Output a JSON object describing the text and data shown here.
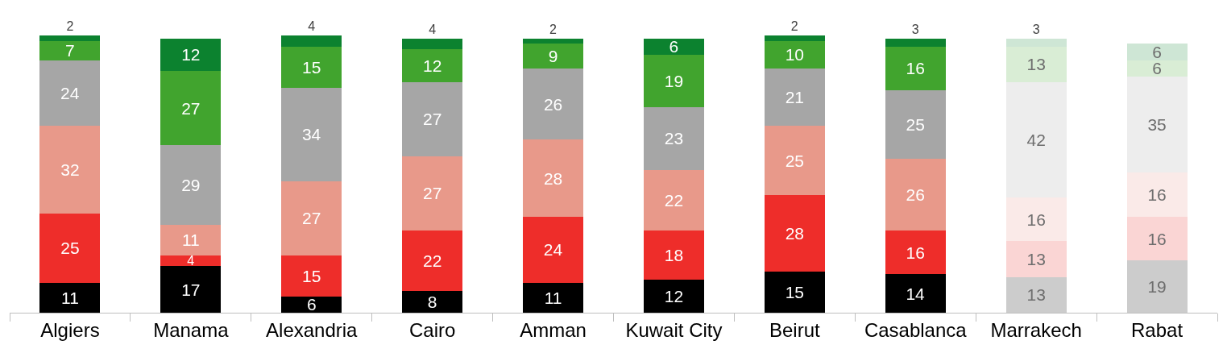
{
  "chart_data": {
    "type": "bar",
    "stacked": true,
    "data_labels": true,
    "categories": [
      "Algiers",
      "Manama",
      "Alexandria",
      "Cairo",
      "Amman",
      "Kuwait City",
      "Beirut",
      "Casablanca",
      "Marrakech",
      "Rabat"
    ],
    "series": [
      {
        "colors": [
          "#000000",
          "#000000",
          "#000000",
          "#000000",
          "#000000",
          "#000000",
          "#000000",
          "#000000",
          "#cccccc",
          "#cccccc"
        ],
        "values": [
          11,
          17,
          6,
          8,
          11,
          12,
          15,
          14,
          13,
          19
        ]
      },
      {
        "colors": [
          "#ee2d2a",
          "#ee2d2a",
          "#ee2d2a",
          "#ee2d2a",
          "#ee2d2a",
          "#ee2d2a",
          "#ee2d2a",
          "#ee2d2a",
          "#fad5d4",
          "#fad5d4"
        ],
        "values": [
          25,
          4,
          15,
          22,
          24,
          18,
          28,
          16,
          13,
          16
        ]
      },
      {
        "colors": [
          "#e8998a",
          "#e8998a",
          "#e8998a",
          "#e8998a",
          "#e8998a",
          "#e8998a",
          "#e8998a",
          "#e8998a",
          "#faeae8",
          "#faeae8"
        ],
        "values": [
          32,
          11,
          27,
          27,
          28,
          22,
          25,
          26,
          16,
          16
        ]
      },
      {
        "colors": [
          "#a6a6a6",
          "#a6a6a6",
          "#a6a6a6",
          "#a6a6a6",
          "#a6a6a6",
          "#a6a6a6",
          "#a6a6a6",
          "#a6a6a6",
          "#ededed",
          "#ededed"
        ],
        "values": [
          24,
          29,
          34,
          27,
          26,
          23,
          21,
          25,
          42,
          35
        ]
      },
      {
        "colors": [
          "#41a42e",
          "#41a42e",
          "#41a42e",
          "#41a42e",
          "#41a42e",
          "#41a42e",
          "#41a42e",
          "#41a42e",
          "#d9edd5",
          "#d9edd5"
        ],
        "values": [
          7,
          27,
          15,
          12,
          9,
          19,
          10,
          16,
          13,
          6
        ]
      },
      {
        "colors": [
          "#0c822f",
          "#0c822f",
          "#0c822f",
          "#0c822f",
          "#0c822f",
          "#0c822f",
          "#0c822f",
          "#0c822f",
          "#cee6d5",
          "#cee6d5"
        ],
        "values": [
          2,
          12,
          4,
          4,
          2,
          6,
          2,
          3,
          3,
          6
        ]
      }
    ]
  }
}
